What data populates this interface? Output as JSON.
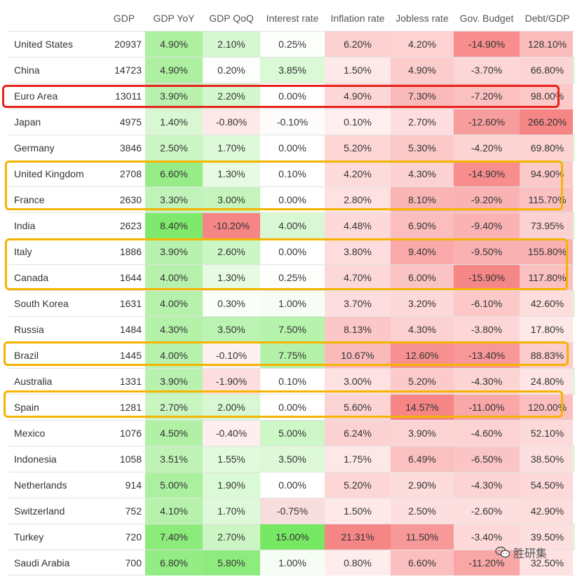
{
  "headers": {
    "gdp": "GDP",
    "gdp_yoy": "GDP YoY",
    "gdp_qoq": "GDP QoQ",
    "interest": "Interest rate",
    "inflation": "Inflation rate",
    "jobless": "Jobless rate",
    "budget": "Gov. Budget",
    "debt": "Debt/GDP"
  },
  "rows": [
    {
      "name": "United States",
      "gdp": "20937",
      "yoy": "4.90%",
      "qoq": "2.10%",
      "rate": "0.25%",
      "infl": "6.20%",
      "jobless": "4.20%",
      "budget": "-14.90%",
      "debt": "128.10%"
    },
    {
      "name": "China",
      "gdp": "14723",
      "yoy": "4.90%",
      "qoq": "0.20%",
      "rate": "3.85%",
      "infl": "1.50%",
      "jobless": "4.90%",
      "budget": "-3.70%",
      "debt": "66.80%"
    },
    {
      "name": "Euro Area",
      "gdp": "13011",
      "yoy": "3.90%",
      "qoq": "2.20%",
      "rate": "0.00%",
      "infl": "4.90%",
      "jobless": "7.30%",
      "budget": "-7.20%",
      "debt": "98.00%"
    },
    {
      "name": "Japan",
      "gdp": "4975",
      "yoy": "1.40%",
      "qoq": "-0.80%",
      "rate": "-0.10%",
      "infl": "0.10%",
      "jobless": "2.70%",
      "budget": "-12.60%",
      "debt": "266.20%"
    },
    {
      "name": "Germany",
      "gdp": "3846",
      "yoy": "2.50%",
      "qoq": "1.70%",
      "rate": "0.00%",
      "infl": "5.20%",
      "jobless": "5.30%",
      "budget": "-4.20%",
      "debt": "69.80%"
    },
    {
      "name": "United Kingdom",
      "gdp": "2708",
      "yoy": "6.60%",
      "qoq": "1.30%",
      "rate": "0.10%",
      "infl": "4.20%",
      "jobless": "4.30%",
      "budget": "-14.90%",
      "debt": "94.90%"
    },
    {
      "name": "France",
      "gdp": "2630",
      "yoy": "3.30%",
      "qoq": "3.00%",
      "rate": "0.00%",
      "infl": "2.80%",
      "jobless": "8.10%",
      "budget": "-9.20%",
      "debt": "115.70%"
    },
    {
      "name": "India",
      "gdp": "2623",
      "yoy": "8.40%",
      "qoq": "-10.20%",
      "rate": "4.00%",
      "infl": "4.48%",
      "jobless": "6.90%",
      "budget": "-9.40%",
      "debt": "73.95%"
    },
    {
      "name": "Italy",
      "gdp": "1886",
      "yoy": "3.90%",
      "qoq": "2.60%",
      "rate": "0.00%",
      "infl": "3.80%",
      "jobless": "9.40%",
      "budget": "-9.50%",
      "debt": "155.80%"
    },
    {
      "name": "Canada",
      "gdp": "1644",
      "yoy": "4.00%",
      "qoq": "1.30%",
      "rate": "0.25%",
      "infl": "4.70%",
      "jobless": "6.00%",
      "budget": "-15.90%",
      "debt": "117.80%"
    },
    {
      "name": "South Korea",
      "gdp": "1631",
      "yoy": "4.00%",
      "qoq": "0.30%",
      "rate": "1.00%",
      "infl": "3.70%",
      "jobless": "3.20%",
      "budget": "-6.10%",
      "debt": "42.60%"
    },
    {
      "name": "Russia",
      "gdp": "1484",
      "yoy": "4.30%",
      "qoq": "3.50%",
      "rate": "7.50%",
      "infl": "8.13%",
      "jobless": "4.30%",
      "budget": "-3.80%",
      "debt": "17.80%"
    },
    {
      "name": "Brazil",
      "gdp": "1445",
      "yoy": "4.00%",
      "qoq": "-0.10%",
      "rate": "7.75%",
      "infl": "10.67%",
      "jobless": "12.60%",
      "budget": "-13.40%",
      "debt": "88.83%"
    },
    {
      "name": "Australia",
      "gdp": "1331",
      "yoy": "3.90%",
      "qoq": "-1.90%",
      "rate": "0.10%",
      "infl": "3.00%",
      "jobless": "5.20%",
      "budget": "-4.30%",
      "debt": "24.80%"
    },
    {
      "name": "Spain",
      "gdp": "1281",
      "yoy": "2.70%",
      "qoq": "2.00%",
      "rate": "0.00%",
      "infl": "5.60%",
      "jobless": "14.57%",
      "budget": "-11.00%",
      "debt": "120.00%"
    },
    {
      "name": "Mexico",
      "gdp": "1076",
      "yoy": "4.50%",
      "qoq": "-0.40%",
      "rate": "5.00%",
      "infl": "6.24%",
      "jobless": "3.90%",
      "budget": "-4.60%",
      "debt": "52.10%"
    },
    {
      "name": "Indonesia",
      "gdp": "1058",
      "yoy": "3.51%",
      "qoq": "1.55%",
      "rate": "3.50%",
      "infl": "1.75%",
      "jobless": "6.49%",
      "budget": "-6.50%",
      "debt": "38.50%"
    },
    {
      "name": "Netherlands",
      "gdp": "914",
      "yoy": "5.00%",
      "qoq": "1.90%",
      "rate": "0.00%",
      "infl": "5.20%",
      "jobless": "2.90%",
      "budget": "-4.30%",
      "debt": "54.50%"
    },
    {
      "name": "Switzerland",
      "gdp": "752",
      "yoy": "4.10%",
      "qoq": "1.70%",
      "rate": "-0.75%",
      "infl": "1.50%",
      "jobless": "2.50%",
      "budget": "-2.60%",
      "debt": "42.90%"
    },
    {
      "name": "Turkey",
      "gdp": "720",
      "yoy": "7.40%",
      "qoq": "2.70%",
      "rate": "15.00%",
      "infl": "21.31%",
      "jobless": "11.50%",
      "budget": "-3.40%",
      "debt": "39.50%"
    },
    {
      "name": "Saudi Arabia",
      "gdp": "700",
      "yoy": "6.80%",
      "qoq": "5.80%",
      "rate": "1.00%",
      "infl": "0.80%",
      "jobless": "6.60%",
      "budget": "-11.20%",
      "debt": "32.50%"
    }
  ],
  "colors": {
    "highlight_red": "#e8231b",
    "highlight_yellow": "#f5b400"
  },
  "watermark": {
    "icon": "wechat-icon",
    "text": "胜研集"
  }
}
